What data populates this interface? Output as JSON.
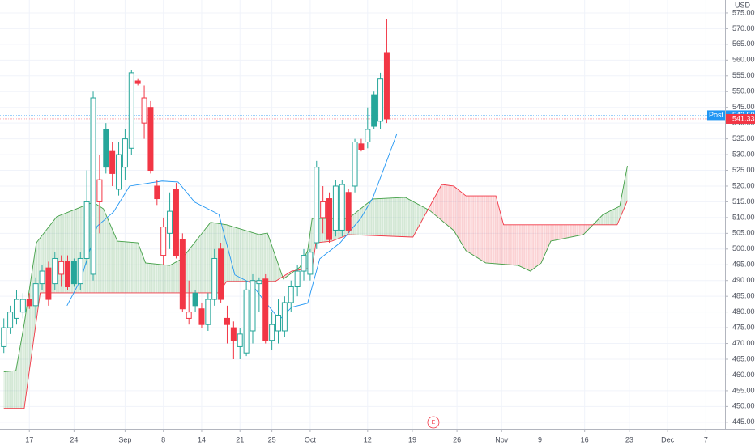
{
  "chart_data": {
    "type": "candlestick",
    "currency": "USD",
    "xlim": [
      -0.6,
      113
    ],
    "ylim": [
      442.9,
      579.1
    ],
    "xticks": [
      {
        "value": 4,
        "label": "17"
      },
      {
        "value": 11,
        "label": "24"
      },
      {
        "value": 19,
        "label": "Sep"
      },
      {
        "value": 25,
        "label": "8"
      },
      {
        "value": 31,
        "label": "14"
      },
      {
        "value": 37,
        "label": "21"
      },
      {
        "value": 42,
        "label": "25"
      },
      {
        "value": 48,
        "label": "Oct"
      },
      {
        "value": 57,
        "label": "12"
      },
      {
        "value": 64,
        "label": "19"
      },
      {
        "value": 71,
        "label": "26"
      },
      {
        "value": 78,
        "label": "Nov"
      },
      {
        "value": 84,
        "label": "9"
      },
      {
        "value": 91,
        "label": "16"
      },
      {
        "value": 98,
        "label": "23"
      },
      {
        "value": 104,
        "label": "Dec"
      },
      {
        "value": 110,
        "label": "7"
      }
    ],
    "yticks": [
      {
        "value": 445,
        "label": "445.00"
      },
      {
        "value": 450,
        "label": "450.00"
      },
      {
        "value": 455,
        "label": "455.00"
      },
      {
        "value": 460,
        "label": "460.00"
      },
      {
        "value": 465,
        "label": "465.00"
      },
      {
        "value": 470,
        "label": "470.00"
      },
      {
        "value": 475,
        "label": "475.00"
      },
      {
        "value": 480,
        "label": "480.00"
      },
      {
        "value": 485,
        "label": "485.00"
      },
      {
        "value": 490,
        "label": "490.00"
      },
      {
        "value": 495,
        "label": "495.00"
      },
      {
        "value": 500,
        "label": "500.00"
      },
      {
        "value": 505,
        "label": "505.00"
      },
      {
        "value": 510,
        "label": "510.00"
      },
      {
        "value": 515,
        "label": "515.00"
      },
      {
        "value": 520,
        "label": "520.00"
      },
      {
        "value": 525,
        "label": "525.00"
      },
      {
        "value": 530,
        "label": "530.00"
      },
      {
        "value": 535,
        "label": "535.00"
      },
      {
        "value": 540,
        "label": "540.00"
      },
      {
        "value": 545,
        "label": "545.00"
      },
      {
        "value": 550,
        "label": "550.00"
      },
      {
        "value": 555,
        "label": "555.00"
      },
      {
        "value": 560,
        "label": "560.00"
      },
      {
        "value": 565,
        "label": "565.00"
      },
      {
        "value": 570,
        "label": "570.00"
      },
      {
        "value": 575,
        "label": "575.00"
      }
    ],
    "grid": true,
    "up_color": "#26a69a",
    "down_color": "#f23645",
    "open": [
      469,
      475,
      478,
      480,
      484,
      482,
      489,
      494,
      489,
      492,
      496,
      496,
      489,
      497,
      492,
      515,
      538,
      531,
      519,
      526,
      532,
      553.4,
      540,
      545,
      520,
      498,
      505,
      519,
      503,
      478,
      486,
      481,
      476,
      484,
      500,
      478,
      475,
      469,
      467,
      474,
      489,
      490.5,
      471,
      474,
      474,
      483,
      488,
      493,
      492,
      502,
      510,
      516,
      506,
      506,
      518,
      520,
      533.4,
      534,
      549,
      540.6,
      562.4
    ],
    "high": [
      478,
      482,
      487,
      486,
      486,
      491,
      495,
      496,
      499,
      498,
      498,
      497,
      499,
      525,
      550,
      530,
      540,
      534,
      534,
      538,
      557,
      554,
      552,
      547,
      522,
      510,
      518,
      521,
      505,
      490,
      487,
      483,
      486,
      500,
      502,
      482,
      477,
      475,
      490,
      492,
      491,
      492,
      480,
      484,
      485,
      490,
      495,
      500,
      500,
      528,
      520,
      518,
      522,
      522,
      519,
      535,
      535,
      545,
      550,
      556,
      573
    ],
    "low": [
      467,
      473,
      476,
      478,
      481,
      478,
      487,
      482,
      487,
      488,
      487,
      488,
      487,
      495,
      490,
      505,
      524,
      520,
      517,
      522,
      530,
      552,
      535,
      524,
      514,
      495,
      500,
      497,
      480,
      476,
      480,
      475,
      474,
      482,
      483,
      470,
      465,
      465,
      466,
      470,
      480,
      470,
      468,
      470,
      472,
      480,
      485,
      490,
      490,
      500,
      505,
      502,
      504,
      504,
      505,
      518,
      531,
      532,
      538,
      538,
      540
    ],
    "close": [
      475,
      480,
      484,
      484,
      482,
      489,
      493,
      484,
      497,
      496,
      488,
      489,
      497,
      515,
      548,
      522,
      526,
      524,
      530,
      535,
      556,
      552.6,
      548,
      525,
      516,
      507,
      512,
      498,
      481,
      480,
      482,
      476,
      484,
      497,
      484,
      476,
      471,
      473,
      487,
      490,
      490,
      471,
      476,
      479,
      483,
      488,
      493,
      498,
      499,
      526,
      515,
      503,
      520,
      520.5,
      506,
      534,
      531.6,
      538,
      539,
      554,
      541.33
    ],
    "ichimoku": [
      {
        "color": "#43a047",
        "x": [
          0,
          1.9,
          3.2,
          5.1,
          8.3,
          10.8,
          14,
          15.6,
          17.8,
          21,
          22.2,
          26,
          27.9,
          32.4,
          34.9,
          40,
          41.3,
          43.8,
          46.4,
          47.6,
          48.3,
          54,
          57.8,
          62.9,
          66.7,
          70.5,
          72.4,
          75.5,
          80.6,
          82.5,
          84.2,
          85.7,
          90.8,
          93.9,
          96.5,
          97.7
        ],
        "values": [
          461,
          461.4,
          476.3,
          502,
          510.3,
          512.3,
          514.9,
          512.8,
          502.5,
          502,
          495.6,
          494.8,
          496.9,
          508.5,
          507.7,
          504.6,
          505.1,
          490.5,
          494.3,
          499.5,
          509.7,
          509.7,
          515.9,
          516.4,
          512.3,
          505.9,
          499.5,
          495.6,
          494.8,
          493,
          495.6,
          502.5,
          504.6,
          511,
          513.6,
          526.4
        ]
      },
      {
        "color": "#f23645",
        "x": [
          0,
          3.2,
          3.8,
          5.7,
          33.7,
          34.9,
          42.5,
          45.1,
          47.6,
          48.3,
          48.9,
          51.4,
          54,
          64.1,
          68.6,
          70.5,
          72.4,
          77.1,
          78.3,
          96.1,
          97.7
        ],
        "values": [
          449.4,
          449.4,
          458.4,
          486.1,
          486.1,
          489.7,
          489.7,
          493,
          493.8,
          493.8,
          502,
          502.5,
          504.6,
          503.8,
          520.5,
          520,
          516.9,
          516.9,
          507.7,
          507.7,
          515.4
        ]
      },
      {
        "color": "#2196f3",
        "x": [
          9.9,
          12.1,
          14.6,
          17.2,
          19.7,
          24.8,
          27.3,
          29.9,
          33.7,
          36.2,
          38.7,
          40.6,
          43.2,
          45.1,
          47.6,
          49.5,
          52.7,
          55.9,
          57.8,
          59.7,
          61.6
        ],
        "values": [
          482,
          490.5,
          507.2,
          511.8,
          520,
          521.6,
          521.3,
          514.9,
          511,
          491.8,
          489.2,
          484.1,
          477.6,
          481.5,
          482.8,
          496.9,
          502,
          509.7,
          516.2,
          526.4,
          536.7
        ]
      }
    ],
    "price_lines": [
      {
        "value": 542.5,
        "label": "Post",
        "value_label": "542.50",
        "color": "#2196f3"
      },
      {
        "value": 541.33,
        "value_label": "541.33",
        "color": "#f23645"
      }
    ],
    "events": [
      {
        "x": 67.3,
        "label": "E"
      }
    ]
  }
}
